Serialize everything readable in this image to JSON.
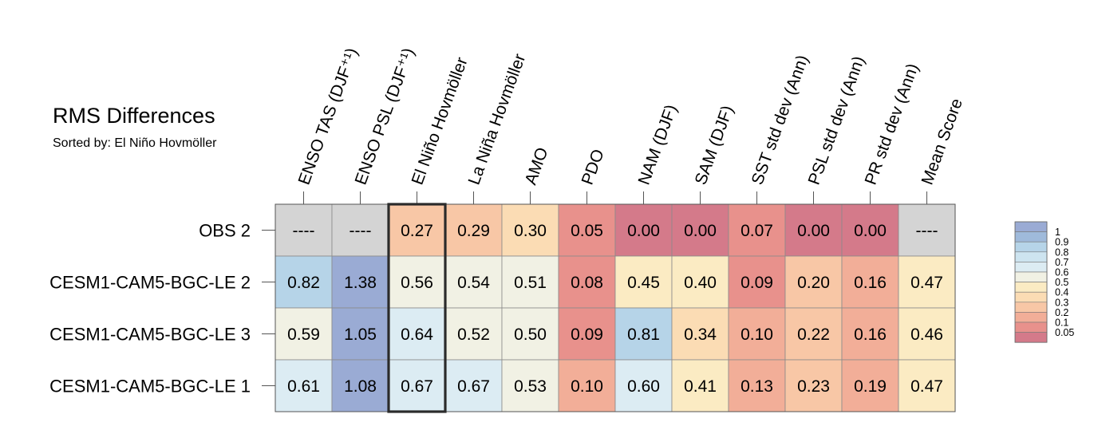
{
  "chart_data": {
    "type": "heatmap",
    "title": "RMS Differences",
    "subtitle": "Sorted by: El Niño Hovmöller",
    "columns": [
      "ENSO TAS (DJF⁺¹)",
      "ENSO PSL (DJF⁺¹)",
      "El Niño Hovmöller",
      "La Niña Hovmöller",
      "AMO",
      "PDO",
      "NAM (DJF)",
      "SAM (DJF)",
      "SST std dev (Ann)",
      "PSL std dev (Ann)",
      "PR std dev (Ann)",
      "Mean Score"
    ],
    "rows": [
      "OBS 2",
      "CESM1-CAM5-BGC-LE 2",
      "CESM1-CAM5-BGC-LE 3",
      "CESM1-CAM5-BGC-LE 1"
    ],
    "values": [
      [
        null,
        null,
        0.27,
        0.29,
        0.3,
        0.05,
        0.0,
        0.0,
        0.07,
        0.0,
        0.0,
        null
      ],
      [
        0.82,
        1.38,
        0.56,
        0.54,
        0.51,
        0.08,
        0.45,
        0.4,
        0.09,
        0.2,
        0.16,
        0.47
      ],
      [
        0.59,
        1.05,
        0.64,
        0.52,
        0.5,
        0.09,
        0.81,
        0.34,
        0.1,
        0.22,
        0.16,
        0.46
      ],
      [
        0.61,
        1.08,
        0.67,
        0.67,
        0.53,
        0.1,
        0.6,
        0.41,
        0.13,
        0.23,
        0.19,
        0.47
      ]
    ],
    "missing_label": "----",
    "missing_color": "#d4d4d4",
    "highlighted_column": "El Niño Hovmöller",
    "colorbar": {
      "ticks": [
        "1",
        "0.9",
        "0.8",
        "0.7",
        "0.6",
        "0.5",
        "0.4",
        "0.3",
        "0.2",
        "0.1",
        "0.05"
      ],
      "bins": [
        {
          "min": 1.0,
          "color": "#9aabd4"
        },
        {
          "min": 0.9,
          "color": "#9fbadb"
        },
        {
          "min": 0.8,
          "color": "#b6d4e8"
        },
        {
          "min": 0.7,
          "color": "#cde4f0"
        },
        {
          "min": 0.6,
          "color": "#dcecf3"
        },
        {
          "min": 0.5,
          "color": "#f1f1e4"
        },
        {
          "min": 0.4,
          "color": "#fbebc3"
        },
        {
          "min": 0.3,
          "color": "#fbdcb4"
        },
        {
          "min": 0.2,
          "color": "#f8c7a6"
        },
        {
          "min": 0.1,
          "color": "#f2ae98"
        },
        {
          "min": 0.05,
          "color": "#e8918c"
        },
        {
          "min": -1,
          "color": "#d47a8a"
        }
      ]
    }
  }
}
